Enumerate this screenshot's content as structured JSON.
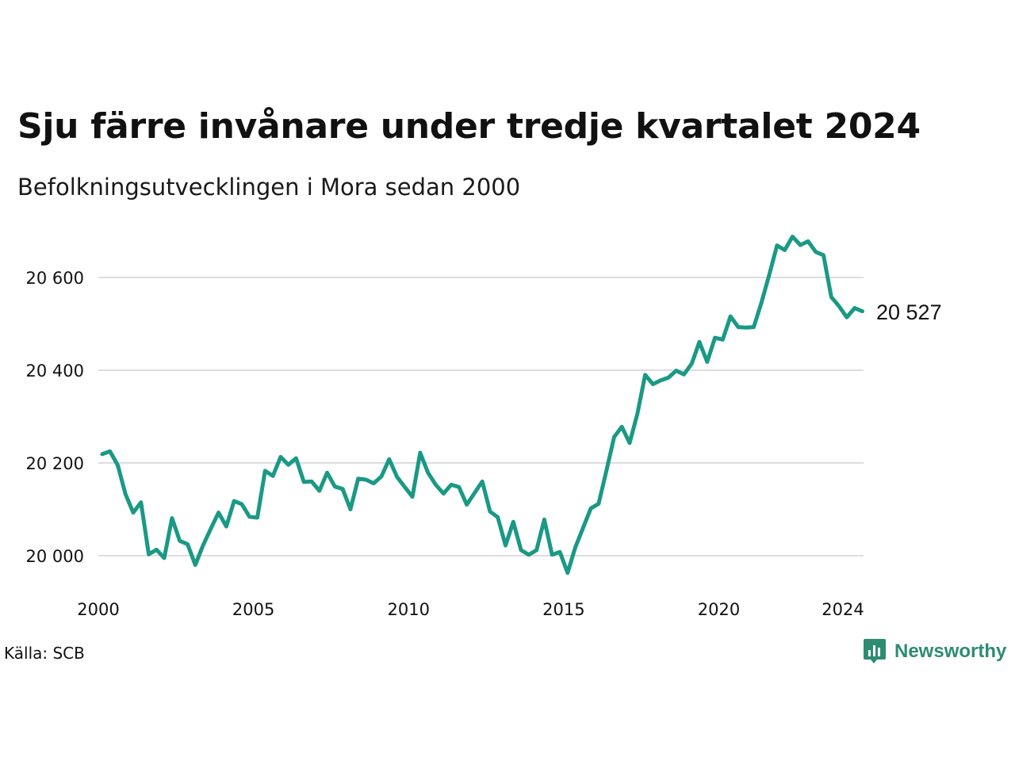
{
  "title": "Sju färre invånare under tredje kvartalet 2024",
  "subtitle": "Befolkningsutvecklingen i Mora sedan 2000",
  "source": "Källa: SCB",
  "brand": {
    "name": "Newsworthy",
    "icon": "newsworthy-logo-icon",
    "color": "#2e8b74"
  },
  "colors": {
    "line": "#1a9985",
    "grid": "#dddddd"
  },
  "chart_data": {
    "type": "line",
    "title": "Sju färre invånare under tredje kvartalet 2024",
    "subtitle": "Befolkningsutvecklingen i Mora sedan 2000",
    "xlabel": "",
    "ylabel": "",
    "xlim": [
      2000,
      2024.5
    ],
    "ylim": [
      19960,
      20700
    ],
    "y_ticks": [
      20000,
      20200,
      20400,
      20600
    ],
    "y_tick_labels": [
      "20 000",
      "20 200",
      "20 400",
      "20 600"
    ],
    "x_ticks": [
      2000,
      2005,
      2010,
      2015,
      2020,
      2024
    ],
    "x_tick_labels": [
      "2000",
      "2005",
      "2010",
      "2015",
      "2020",
      "2024"
    ],
    "grid": true,
    "end_label": "20 527",
    "series": [
      {
        "x": [
          2000.125,
          2000.375,
          2000.625,
          2000.875,
          2001.125,
          2001.375,
          2001.625,
          2001.875,
          2002.125,
          2002.375,
          2002.625,
          2002.875,
          2003.125,
          2003.375,
          2003.625,
          2003.875,
          2004.125,
          2004.375,
          2004.625,
          2004.875,
          2005.125,
          2005.375,
          2005.625,
          2005.875,
          2006.125,
          2006.375,
          2006.625,
          2006.875,
          2007.125,
          2007.375,
          2007.625,
          2007.875,
          2008.125,
          2008.375,
          2008.625,
          2008.875,
          2009.125,
          2009.375,
          2009.625,
          2009.875,
          2010.125,
          2010.375,
          2010.625,
          2010.875,
          2011.125,
          2011.375,
          2011.625,
          2011.875,
          2012.125,
          2012.375,
          2012.625,
          2012.875,
          2013.125,
          2013.375,
          2013.625,
          2013.875,
          2014.125,
          2014.375,
          2014.625,
          2014.875,
          2015.125,
          2015.375,
          2015.625,
          2015.875,
          2016.125,
          2016.375,
          2016.625,
          2016.875,
          2017.125,
          2017.375,
          2017.625,
          2017.875,
          2018.125,
          2018.375,
          2018.625,
          2018.875,
          2019.125,
          2019.375,
          2019.625,
          2019.875,
          2020.125,
          2020.375,
          2020.625,
          2020.875,
          2021.125,
          2021.375,
          2021.625,
          2021.875,
          2022.125,
          2022.375,
          2022.625,
          2022.875,
          2023.125,
          2023.375,
          2023.625,
          2023.875,
          2024.125,
          2024.375,
          2024.625
        ],
        "values": [
          20219,
          20225,
          20195,
          20133,
          20093,
          20115,
          20003,
          20013,
          19995,
          20081,
          20032,
          20025,
          19980,
          20022,
          20058,
          20093,
          20063,
          20118,
          20111,
          20084,
          20082,
          20183,
          20172,
          20213,
          20196,
          20210,
          20159,
          20160,
          20140,
          20179,
          20149,
          20144,
          20100,
          20166,
          20164,
          20156,
          20171,
          20208,
          20170,
          20148,
          20127,
          20222,
          20179,
          20153,
          20134,
          20153,
          20148,
          20110,
          20135,
          20160,
          20095,
          20083,
          20022,
          20073,
          20012,
          20002,
          20012,
          20078,
          20002,
          20008,
          19963,
          20018,
          20060,
          20102,
          20112,
          20183,
          20256,
          20278,
          20243,
          20306,
          20390,
          20370,
          20378,
          20384,
          20399,
          20391,
          20414,
          20461,
          20418,
          20470,
          20466,
          20516,
          20493,
          20492,
          20493,
          20546,
          20606,
          20669,
          20659,
          20688,
          20670,
          20678,
          20655,
          20648,
          20558,
          20538,
          20514,
          20534,
          20527
        ]
      }
    ]
  }
}
